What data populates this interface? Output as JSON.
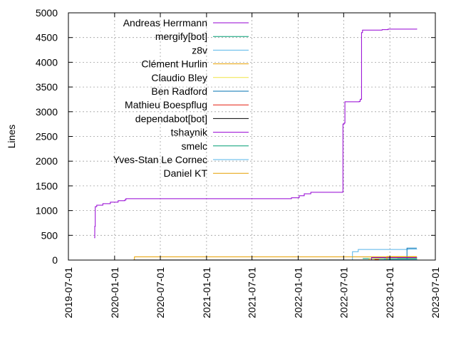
{
  "chart_data": {
    "type": "line",
    "title": "",
    "xlabel": "",
    "ylabel": "Lines",
    "ylim": [
      0,
      5000
    ],
    "yticks": [
      0,
      500,
      1000,
      1500,
      2000,
      2500,
      3000,
      3500,
      4000,
      4500,
      5000
    ],
    "xlim": [
      "2019-07-01",
      "2023-07-01"
    ],
    "xticks": [
      "2019-07-01",
      "2020-01-01",
      "2020-07-01",
      "2021-01-01",
      "2021-07-01",
      "2022-01-01",
      "2022-07-01",
      "2023-01-01",
      "2023-07-01"
    ],
    "grid": true,
    "legend_position": "top-left",
    "series": [
      {
        "name": "Andreas Herrmann",
        "color": "#9400d3",
        "points": [
          [
            "2019-10-12",
            450
          ],
          [
            "2019-10-14",
            680
          ],
          [
            "2019-10-16",
            1080
          ],
          [
            "2019-10-22",
            1110
          ],
          [
            "2019-11-15",
            1140
          ],
          [
            "2019-12-15",
            1170
          ],
          [
            "2020-01-15",
            1200
          ],
          [
            "2020-02-10",
            1215
          ],
          [
            "2020-02-15",
            1240
          ],
          [
            "2021-06-01",
            1240
          ],
          [
            "2021-12-01",
            1240
          ],
          [
            "2021-12-05",
            1260
          ],
          [
            "2022-01-05",
            1300
          ],
          [
            "2022-01-25",
            1340
          ],
          [
            "2022-02-20",
            1370
          ],
          [
            "2022-06-10",
            1370
          ],
          [
            "2022-06-27",
            1380
          ],
          [
            "2022-06-28",
            2750
          ],
          [
            "2022-07-03",
            2770
          ],
          [
            "2022-07-06",
            3200
          ],
          [
            "2022-09-01",
            3210
          ],
          [
            "2022-09-05",
            3250
          ],
          [
            "2022-09-10",
            4600
          ],
          [
            "2022-09-14",
            4650
          ],
          [
            "2022-12-01",
            4660
          ],
          [
            "2022-12-25",
            4670
          ],
          [
            "2023-04-18",
            4680
          ]
        ]
      },
      {
        "name": "mergify[bot]",
        "color": "#009e73",
        "points": [
          [
            "2022-09-15",
            30
          ],
          [
            "2023-02-01",
            35
          ],
          [
            "2023-04-18",
            40
          ]
        ]
      },
      {
        "name": "z8v",
        "color": "#56b4e9",
        "points": [
          [
            "2022-06-15",
            0
          ],
          [
            "2022-08-05",
            170
          ],
          [
            "2022-08-28",
            215
          ],
          [
            "2023-03-01",
            215
          ],
          [
            "2023-03-15",
            220
          ],
          [
            "2023-04-18",
            225
          ]
        ]
      },
      {
        "name": "Clément Hurlin",
        "color": "#e69f00",
        "points": [
          [
            "2020-03-12",
            0
          ],
          [
            "2020-03-20",
            65
          ],
          [
            "2023-04-18",
            65
          ]
        ]
      },
      {
        "name": "Claudio Bley",
        "color": "#f0e442",
        "points": [
          [
            "2022-07-20",
            0
          ],
          [
            "2022-10-10",
            25
          ],
          [
            "2023-04-18",
            30
          ]
        ]
      },
      {
        "name": "Ben Radford",
        "color": "#0072b2",
        "points": [
          [
            "2023-03-09",
            0
          ],
          [
            "2023-03-10",
            240
          ],
          [
            "2023-04-18",
            240
          ]
        ]
      },
      {
        "name": "Mathieu Boespflug",
        "color": "#e51e10",
        "points": [
          [
            "2022-11-01",
            10
          ],
          [
            "2023-04-18",
            12
          ]
        ]
      },
      {
        "name": "dependabot[bot]",
        "color": "#000000",
        "points": [
          [
            "2020-03-15",
            2
          ],
          [
            "2023-04-18",
            4
          ]
        ]
      },
      {
        "name": "tshaynik",
        "color": "#9400d3",
        "points": [
          [
            "2022-10-10",
            0
          ],
          [
            "2022-10-20",
            50
          ],
          [
            "2023-04-18",
            55
          ]
        ]
      },
      {
        "name": "smelc",
        "color": "#009e73",
        "points": [
          [
            "2022-12-01",
            0
          ],
          [
            "2022-12-10",
            20
          ],
          [
            "2023-04-18",
            22
          ]
        ]
      },
      {
        "name": "Yves-Stan Le Cornec",
        "color": "#56b4e9",
        "points": [
          [
            "2022-11-15",
            0
          ],
          [
            "2022-11-20",
            15
          ],
          [
            "2023-04-18",
            18
          ]
        ]
      },
      {
        "name": "Daniel KT",
        "color": "#e69f00",
        "points": [
          [
            "2022-12-15",
            0
          ],
          [
            "2022-12-20",
            70
          ],
          [
            "2023-04-18",
            72
          ]
        ]
      }
    ]
  }
}
